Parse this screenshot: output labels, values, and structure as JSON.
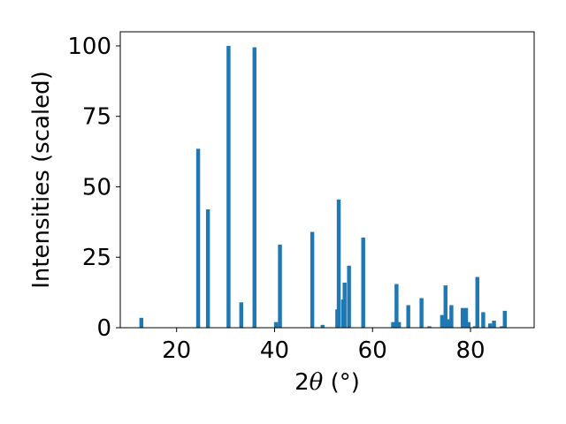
{
  "chart_data": {
    "type": "bar",
    "title": "",
    "xlabel": {
      "prefix": "2",
      "symbol": "θ",
      "unit": " (°)"
    },
    "ylabel": "Intensities (scaled)",
    "xlim": [
      8.5,
      93
    ],
    "ylim": [
      0,
      105
    ],
    "xticks": [
      20,
      40,
      60,
      80
    ],
    "yticks": [
      0,
      25,
      50,
      75,
      100
    ],
    "grid": false,
    "legend": "none",
    "bar_width": 0.8,
    "color": "#1f77b4",
    "points": [
      {
        "x": 12.8,
        "y": 3.5
      },
      {
        "x": 24.4,
        "y": 63.5
      },
      {
        "x": 26.4,
        "y": 42.0
      },
      {
        "x": 30.6,
        "y": 100.0
      },
      {
        "x": 33.2,
        "y": 9.0
      },
      {
        "x": 35.9,
        "y": 99.5
      },
      {
        "x": 40.3,
        "y": 2.0
      },
      {
        "x": 41.1,
        "y": 29.5
      },
      {
        "x": 47.7,
        "y": 34.0
      },
      {
        "x": 49.8,
        "y": 1.0
      },
      {
        "x": 52.8,
        "y": 6.5
      },
      {
        "x": 53.1,
        "y": 45.5
      },
      {
        "x": 54.0,
        "y": 10.0
      },
      {
        "x": 54.3,
        "y": 16.0
      },
      {
        "x": 55.2,
        "y": 22.0
      },
      {
        "x": 58.1,
        "y": 32.0
      },
      {
        "x": 64.2,
        "y": 2.0
      },
      {
        "x": 64.9,
        "y": 15.5
      },
      {
        "x": 65.4,
        "y": 2.0
      },
      {
        "x": 67.3,
        "y": 8.0
      },
      {
        "x": 70.0,
        "y": 10.5
      },
      {
        "x": 71.6,
        "y": 0.5
      },
      {
        "x": 74.2,
        "y": 4.5
      },
      {
        "x": 74.9,
        "y": 15.0
      },
      {
        "x": 75.4,
        "y": 3.0
      },
      {
        "x": 76.1,
        "y": 8.0
      },
      {
        "x": 78.4,
        "y": 7.0
      },
      {
        "x": 79.1,
        "y": 7.0
      },
      {
        "x": 79.6,
        "y": 2.0
      },
      {
        "x": 80.9,
        "y": 0.5
      },
      {
        "x": 81.4,
        "y": 18.0
      },
      {
        "x": 82.6,
        "y": 5.5
      },
      {
        "x": 84.0,
        "y": 1.5
      },
      {
        "x": 84.8,
        "y": 2.5
      },
      {
        "x": 86.4,
        "y": 0.5
      },
      {
        "x": 87.0,
        "y": 6.0
      }
    ]
  }
}
